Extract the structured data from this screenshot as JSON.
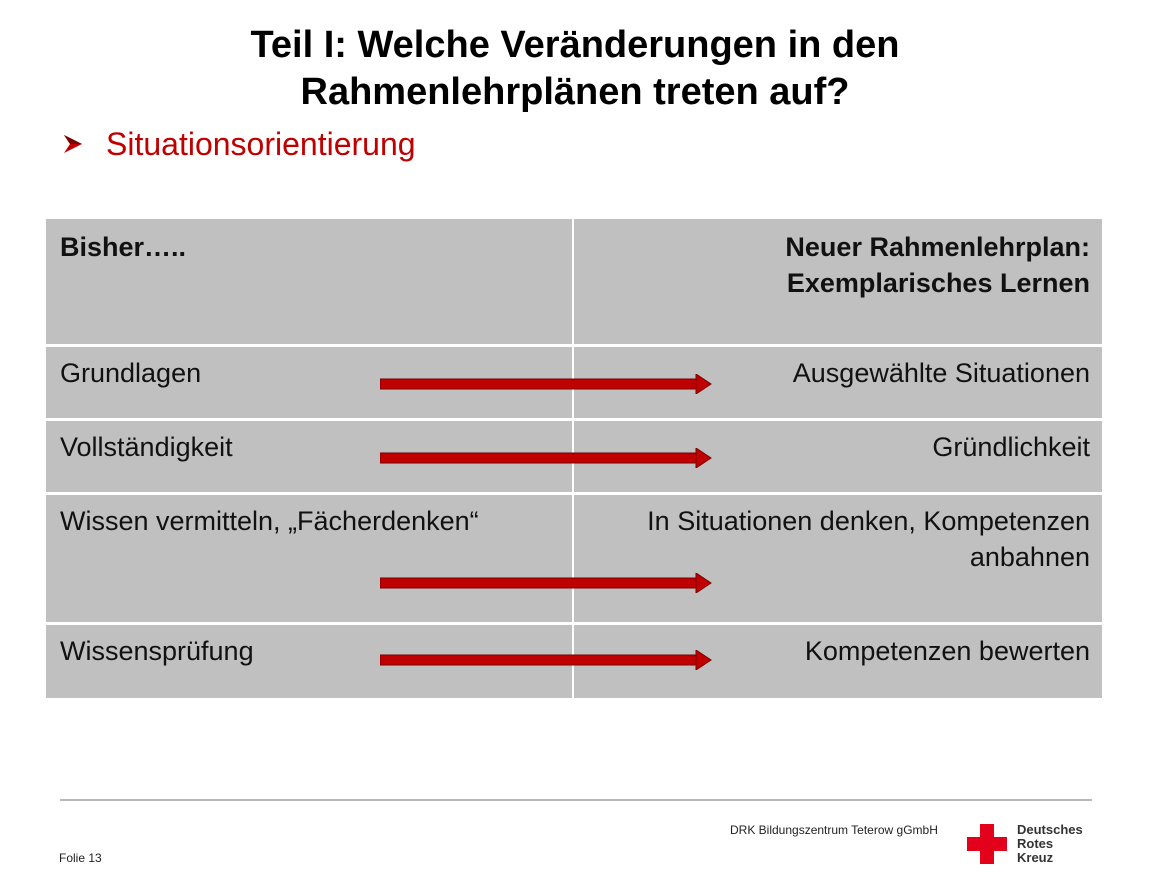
{
  "slide": {
    "title_line1": "Teil I: Welche Veränderungen in den",
    "title_line2": "Rahmenlehrplänen treten auf?",
    "bullet": "Situationsorientierung",
    "bullet_icon": "arrowhead-bullet-icon",
    "accent_color": "#c00000",
    "cell_color": "#c0c0c0"
  },
  "table": {
    "header_left": "Bisher…..",
    "header_right_line1": "Neuer Rahmenlehrplan:",
    "header_right_line2": "Exemplarisches Lernen",
    "rows": [
      {
        "left": "Grundlagen",
        "right": "Ausgewählte Situationen"
      },
      {
        "left": "Vollständigkeit",
        "right": "Gründlichkeit"
      },
      {
        "left": "Wissen vermitteln, „Fächerdenken“",
        "right": "In Situationen denken, Kompetenzen anbahnen"
      },
      {
        "left": "Wissensprüfung",
        "right": "Kompetenzen bewerten"
      }
    ],
    "arrow_icon": "right-arrow-icon"
  },
  "footer": {
    "slide_number": "Folie 13",
    "company": "DRK Bildungszentrum Teterow gGmbH",
    "logo_icon": "red-cross-icon",
    "logo_line1": "Deutsches",
    "logo_line2": "Rotes",
    "logo_line3": "Kreuz"
  }
}
